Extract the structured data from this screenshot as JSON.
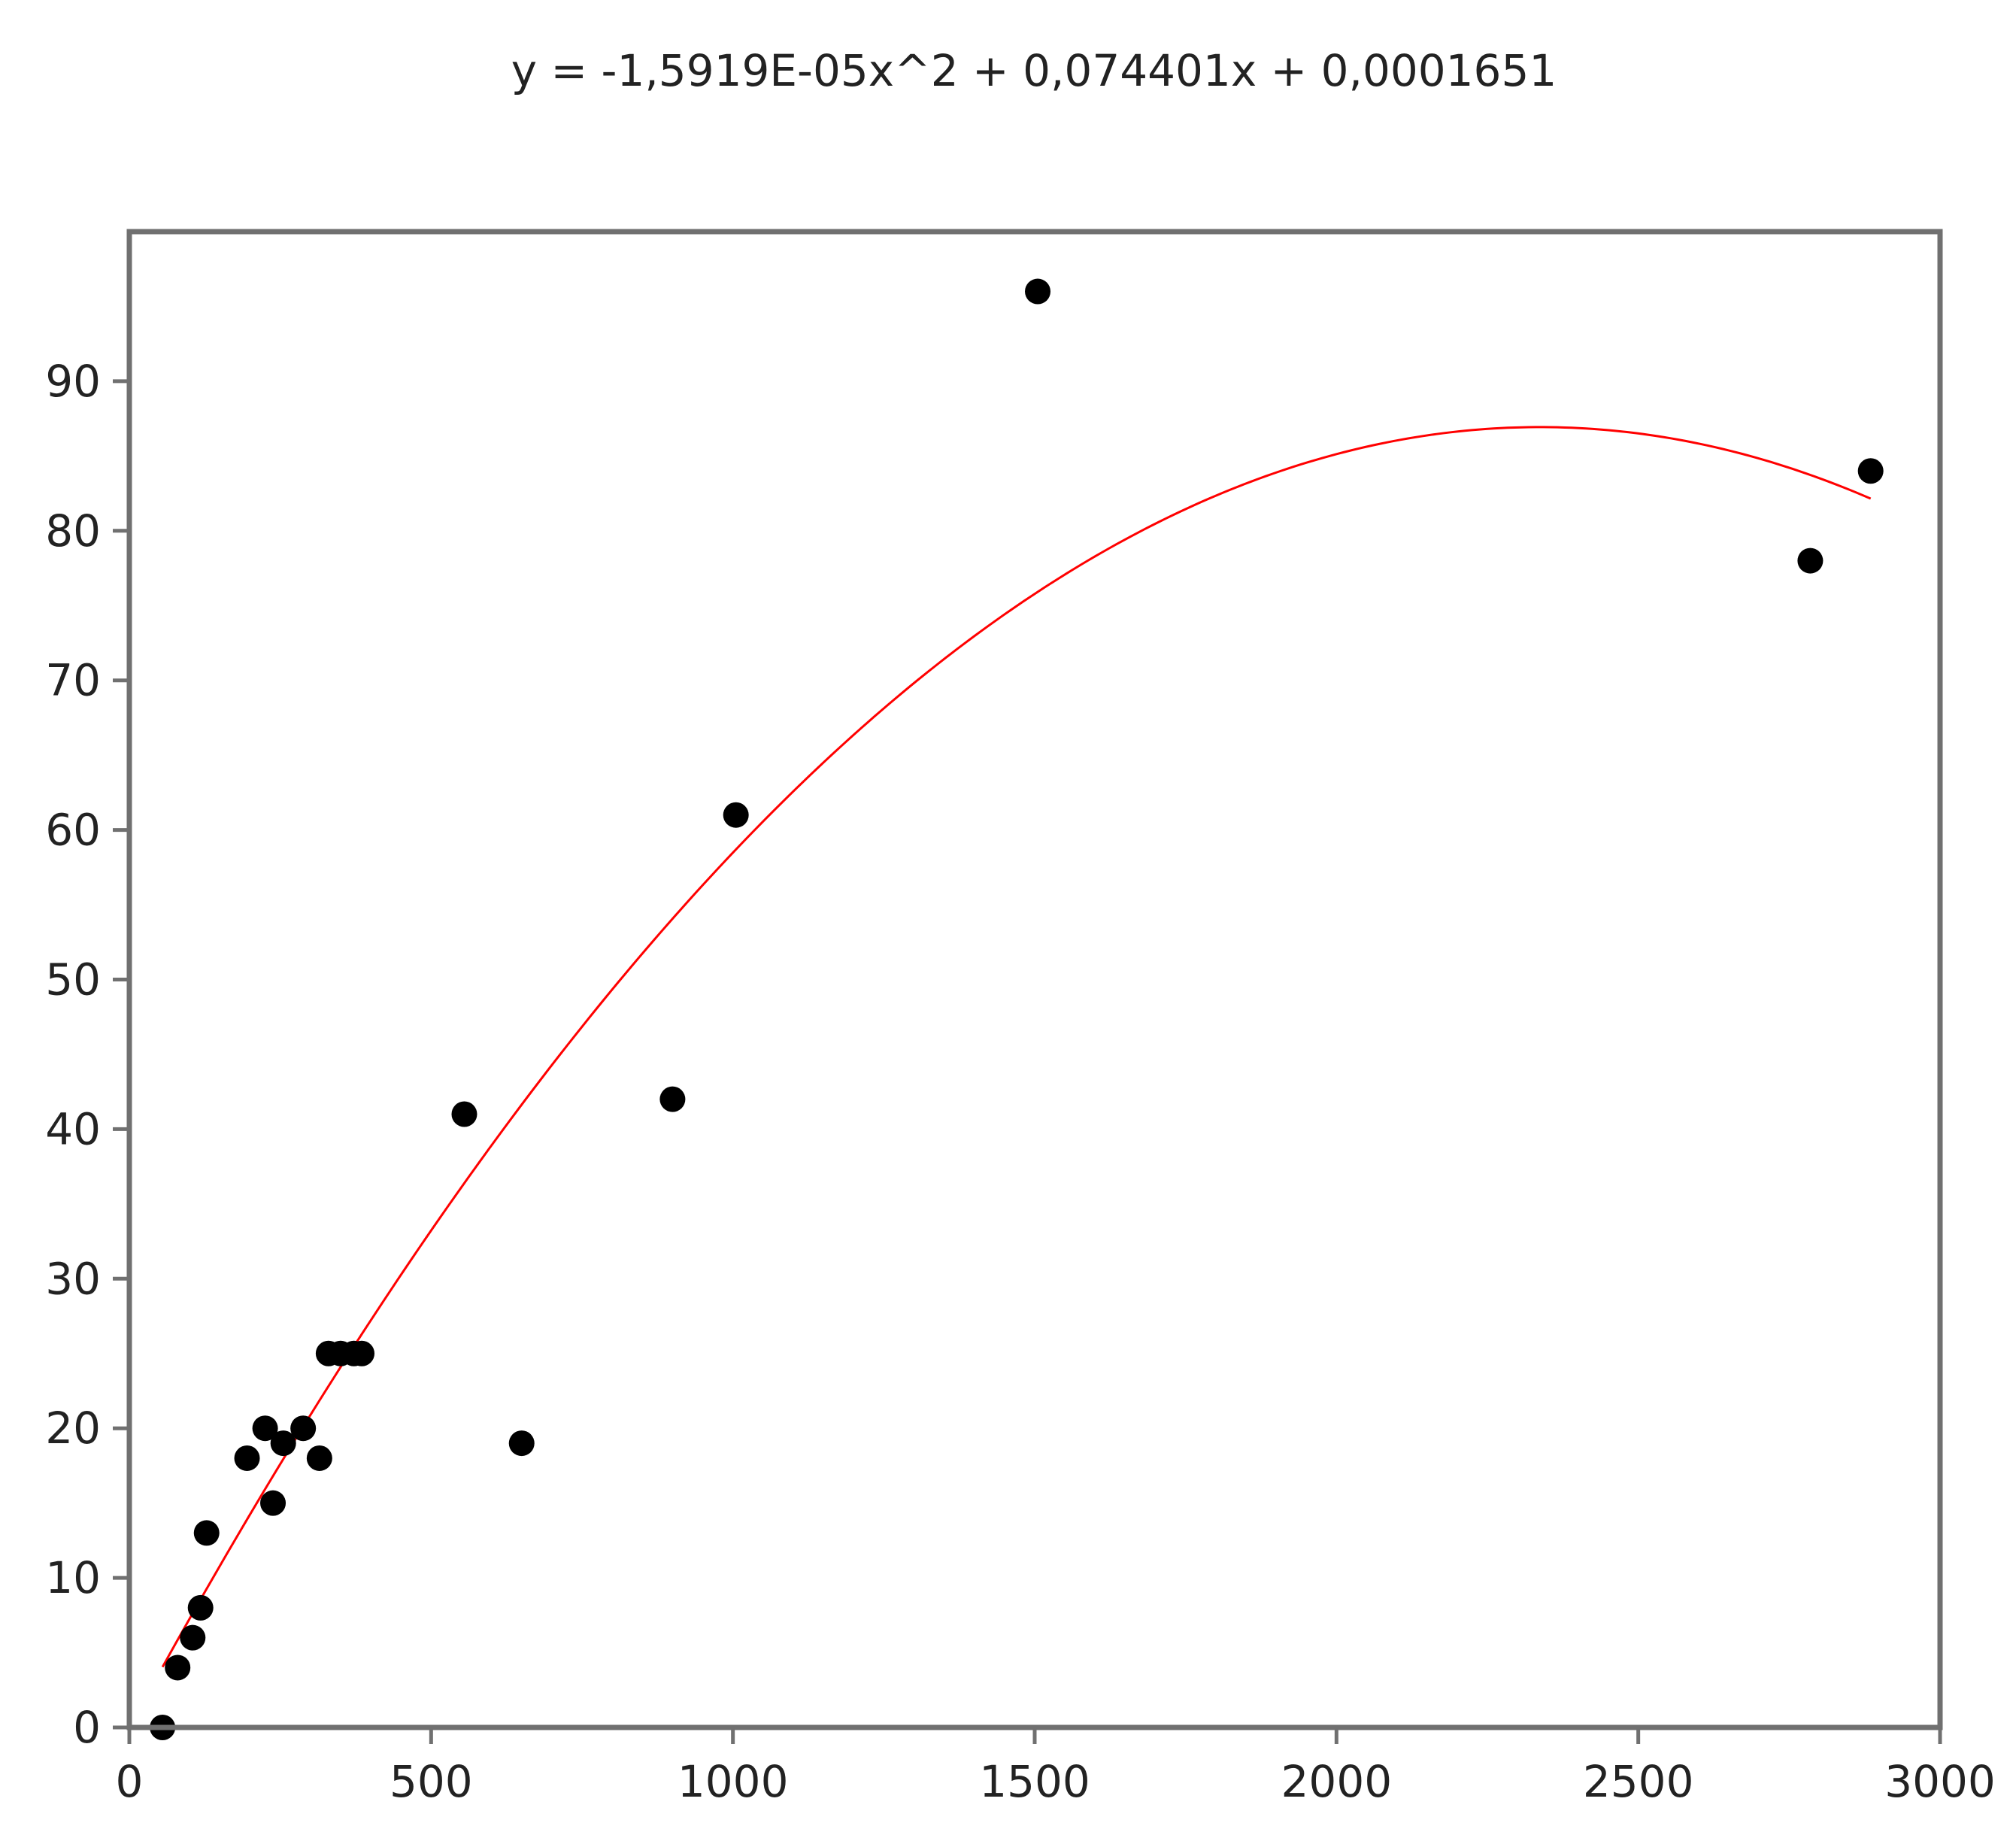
{
  "chart_data": {
    "type": "scatter",
    "title": "y = -1,5919E-05x^2 + 0,074401x + 0,0001651",
    "xlabel": "",
    "ylabel": "",
    "xlim": [
      0,
      3000
    ],
    "ylim": [
      0,
      100
    ],
    "grid": false,
    "legend": "none",
    "x_ticks": [
      {
        "value": 0,
        "label": "0"
      },
      {
        "value": 500,
        "label": "500"
      },
      {
        "value": 1000,
        "label": "1000"
      },
      {
        "value": 1500,
        "label": "1500"
      },
      {
        "value": 2000,
        "label": "2000"
      },
      {
        "value": 2500,
        "label": "2500"
      },
      {
        "value": 3000,
        "label": "3000"
      }
    ],
    "y_ticks": [
      {
        "value": 0,
        "label": "0"
      },
      {
        "value": 10,
        "label": "10"
      },
      {
        "value": 20,
        "label": "20"
      },
      {
        "value": 30,
        "label": "30"
      },
      {
        "value": 40,
        "label": "40"
      },
      {
        "value": 50,
        "label": "50"
      },
      {
        "value": 60,
        "label": "60"
      },
      {
        "value": 70,
        "label": "70"
      },
      {
        "value": 80,
        "label": "80"
      },
      {
        "value": 90,
        "label": "90"
      }
    ],
    "points": [
      {
        "x": 55,
        "y": 0
      },
      {
        "x": 80,
        "y": 4
      },
      {
        "x": 105,
        "y": 6
      },
      {
        "x": 118,
        "y": 8
      },
      {
        "x": 128,
        "y": 13
      },
      {
        "x": 195,
        "y": 18
      },
      {
        "x": 225,
        "y": 20
      },
      {
        "x": 238,
        "y": 15
      },
      {
        "x": 255,
        "y": 19
      },
      {
        "x": 288,
        "y": 20
      },
      {
        "x": 315,
        "y": 18
      },
      {
        "x": 330,
        "y": 25
      },
      {
        "x": 350,
        "y": 25
      },
      {
        "x": 372,
        "y": 25
      },
      {
        "x": 385,
        "y": 25
      },
      {
        "x": 555,
        "y": 41
      },
      {
        "x": 650,
        "y": 19
      },
      {
        "x": 900,
        "y": 42
      },
      {
        "x": 1005,
        "y": 61
      },
      {
        "x": 1505,
        "y": 96
      },
      {
        "x": 2785,
        "y": 78
      },
      {
        "x": 2885,
        "y": 84
      }
    ],
    "fit": {
      "type": "polynomial",
      "degree": 2,
      "coefficients": {
        "a": -1.5919e-05,
        "b": 0.074401,
        "c": 0.0001651
      },
      "x_range": [
        55,
        2885
      ],
      "color": "#ff0000"
    },
    "colors": {
      "points": "#000000",
      "axis": "#707070",
      "text": "#222222"
    }
  }
}
